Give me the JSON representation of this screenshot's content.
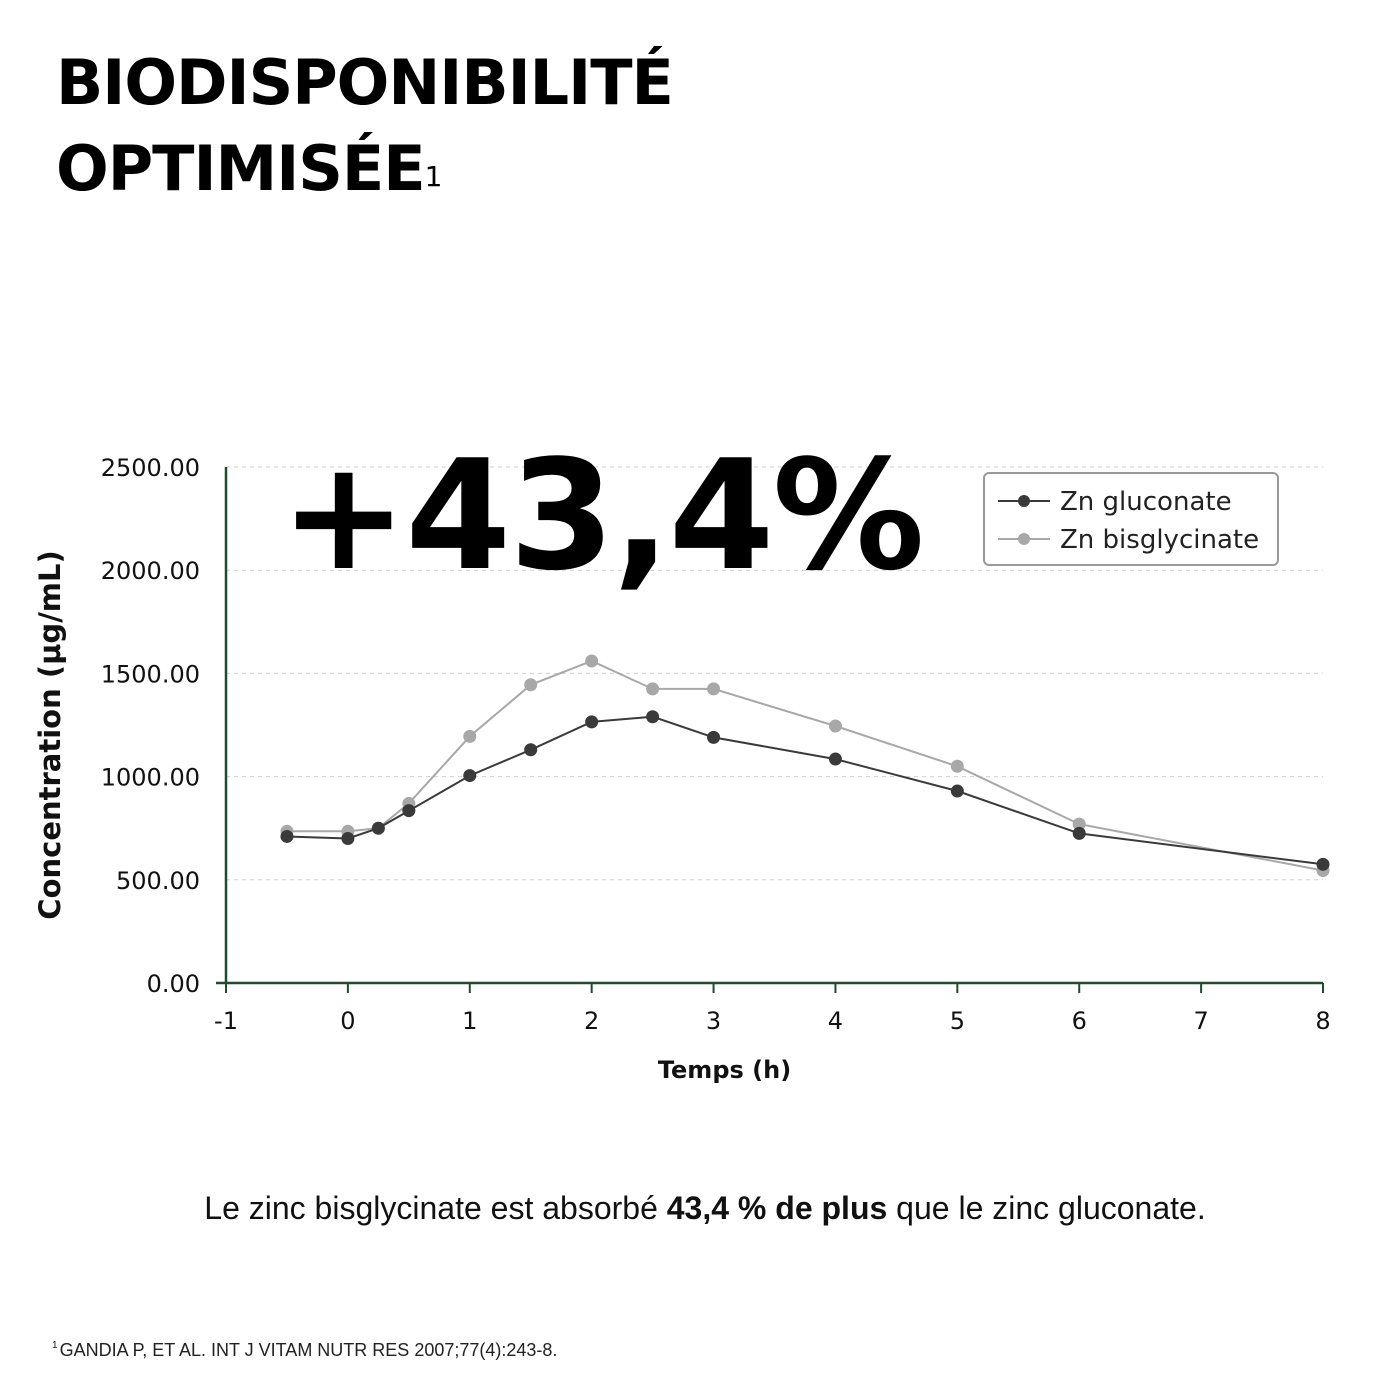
{
  "header": {
    "title_line1": "BIODISPONIBILITÉ",
    "title_line2": "OPTIMISÉE",
    "title_ref": "1"
  },
  "highlight": "+43,4%",
  "caption": {
    "prefix": "Le zinc bisglycinate est absorbé ",
    "bold": "43,4 % de plus",
    "suffix": " que le zinc gluconate."
  },
  "footnote": {
    "ref": "1",
    "text": "GANDIA P, ET AL. INT J VITAM NUTR RES 2007;77(4):243-8."
  },
  "colors": {
    "axis": "#1f4d2b",
    "gluconate": "#3a3a3a",
    "bisglycinate": "#a8a8a8",
    "grid": "#cfcfcf"
  },
  "chart_data": {
    "type": "line",
    "xlabel": "Temps (h)",
    "ylabel": "Concentration (µg/mL)",
    "xlim": [
      -1,
      8
    ],
    "ylim": [
      0,
      2500
    ],
    "xticks": [
      -1,
      0,
      1,
      2,
      3,
      4,
      5,
      6,
      7,
      8
    ],
    "yticks": [
      "0.00",
      "500.00",
      "1000.00",
      "1500.00",
      "2000.00",
      "2500.00"
    ],
    "grid": true,
    "legend_position": "top-right",
    "series": [
      {
        "name": "Zn gluconate",
        "x": [
          -0.5,
          0,
          0.25,
          0.5,
          1,
          1.5,
          2,
          2.5,
          3,
          4,
          5,
          6,
          8
        ],
        "y": [
          710,
          700,
          750,
          835,
          1005,
          1130,
          1265,
          1290,
          1190,
          1085,
          930,
          725,
          575
        ]
      },
      {
        "name": "Zn bisglycinate",
        "x": [
          -0.5,
          0,
          0.25,
          0.5,
          1,
          1.5,
          2,
          2.5,
          3,
          4,
          5,
          6,
          8
        ],
        "y": [
          735,
          735,
          750,
          870,
          1195,
          1445,
          1560,
          1425,
          1425,
          1245,
          1050,
          770,
          545
        ]
      }
    ]
  }
}
